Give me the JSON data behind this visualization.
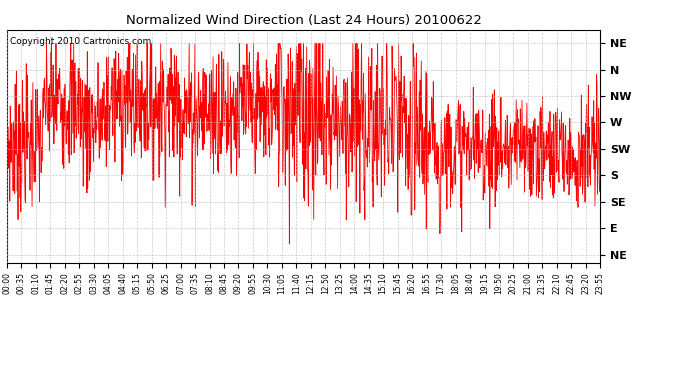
{
  "title": "Normalized Wind Direction (Last 24 Hours) 20100622",
  "copyright": "Copyright 2010 Cartronics.com",
  "line_color": "#FF0000",
  "background_color": "#FFFFFF",
  "grid_color": "#BBBBBB",
  "ytick_labels": [
    "NE",
    "N",
    "NW",
    "W",
    "SW",
    "S",
    "SE",
    "E",
    "NE"
  ],
  "ytick_values": [
    8,
    7,
    6,
    5,
    4,
    3,
    2,
    1,
    0
  ],
  "ylim": [
    -0.3,
    8.5
  ],
  "xtick_labels": [
    "00:00",
    "00:35",
    "01:10",
    "01:45",
    "02:20",
    "02:55",
    "03:30",
    "04:05",
    "04:40",
    "05:15",
    "05:50",
    "06:25",
    "07:00",
    "07:35",
    "08:10",
    "08:45",
    "09:20",
    "09:55",
    "10:30",
    "11:05",
    "11:40",
    "12:15",
    "12:50",
    "13:25",
    "14:00",
    "14:35",
    "15:10",
    "15:45",
    "16:20",
    "16:55",
    "17:30",
    "18:05",
    "18:40",
    "19:15",
    "19:50",
    "20:25",
    "21:00",
    "21:35",
    "22:10",
    "22:45",
    "23:20",
    "23:55"
  ],
  "figsize": [
    6.9,
    3.75
  ],
  "dpi": 100
}
